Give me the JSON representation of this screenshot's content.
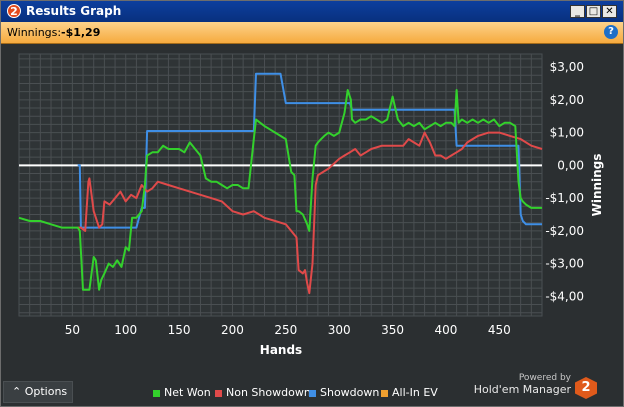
{
  "window": {
    "title": "Results Graph",
    "app_icon_label": "2",
    "buttons": {
      "minimize": "_",
      "maximize": "□",
      "close": "✕"
    }
  },
  "winnings": {
    "label": "Winnings:",
    "value": "-$1,29",
    "help_label": "?"
  },
  "footer": {
    "options_label": "Options",
    "powered_line1": "Powered by",
    "powered_line2": "Hold'em Manager",
    "logo_label": "2"
  },
  "colors": {
    "net_won": "#33d12c",
    "non_showdown": "#e04a4a",
    "showdown": "#3f8fe6",
    "all_in_ev": "#f0a030",
    "background": "#2b2f31",
    "grid": "#4a4f52"
  },
  "chart_data": {
    "type": "line",
    "xlabel": "Hands",
    "ylabel": "Winnings",
    "xlim": [
      0,
      490
    ],
    "ylim": [
      -4.6,
      3.4
    ],
    "x_ticks": [
      50,
      100,
      150,
      200,
      250,
      300,
      350,
      400,
      450
    ],
    "y_ticks": [
      {
        "value": 3,
        "label": "$3,00"
      },
      {
        "value": 2,
        "label": "$2,00"
      },
      {
        "value": 1,
        "label": "$1,00"
      },
      {
        "value": 0,
        "label": "0,00"
      },
      {
        "value": -1,
        "label": "-$1,00"
      },
      {
        "value": -2,
        "label": "-$2,00"
      },
      {
        "value": -3,
        "label": "-$3,00"
      },
      {
        "value": -4,
        "label": "-$4,00"
      }
    ],
    "grid": true,
    "legend_position": "bottom",
    "series": [
      {
        "name": "Net Won",
        "x": [
          0,
          10,
          20,
          30,
          40,
          50,
          55,
          57,
          60,
          62,
          66,
          70,
          72,
          75,
          77,
          80,
          84,
          88,
          92,
          96,
          100,
          103,
          106,
          110,
          115,
          118,
          120,
          125,
          130,
          135,
          140,
          145,
          150,
          155,
          160,
          165,
          170,
          175,
          180,
          185,
          190,
          195,
          200,
          205,
          210,
          215,
          220,
          222,
          226,
          230,
          235,
          240,
          245,
          250,
          255,
          258,
          260,
          262,
          266,
          270,
          272,
          275,
          278,
          280,
          283,
          286,
          290,
          295,
          300,
          305,
          308,
          311,
          312,
          315,
          320,
          325,
          330,
          335,
          340,
          345,
          350,
          355,
          360,
          365,
          370,
          375,
          380,
          385,
          390,
          395,
          400,
          405,
          408,
          410,
          412,
          415,
          420,
          425,
          430,
          435,
          440,
          445,
          450,
          455,
          460,
          465,
          468,
          470,
          472,
          475,
          480,
          485,
          490
        ],
        "y": [
          -1.6,
          -1.7,
          -1.7,
          -1.8,
          -1.9,
          -1.9,
          -1.9,
          -2.0,
          -3.8,
          -3.8,
          -3.8,
          -2.8,
          -2.9,
          -3.8,
          -3.5,
          -3.3,
          -3.0,
          -3.1,
          -2.9,
          -3.1,
          -2.5,
          -2.6,
          -1.6,
          -1.6,
          -1.4,
          -0.6,
          0.3,
          0.4,
          0.4,
          0.6,
          0.5,
          0.5,
          0.5,
          0.4,
          0.7,
          0.5,
          0.3,
          -0.4,
          -0.5,
          -0.5,
          -0.6,
          -0.7,
          -0.6,
          -0.6,
          -0.7,
          -0.7,
          0.8,
          1.4,
          1.3,
          1.2,
          1.1,
          1.0,
          0.9,
          0.8,
          -0.2,
          -0.3,
          -1.4,
          -1.4,
          -1.5,
          -1.8,
          -2.0,
          -0.4,
          0.6,
          0.7,
          0.8,
          0.9,
          1.0,
          0.9,
          1.0,
          1.6,
          2.3,
          2.0,
          1.4,
          1.3,
          1.4,
          1.4,
          1.5,
          1.4,
          1.3,
          1.4,
          2.1,
          1.4,
          1.2,
          1.3,
          1.2,
          1.3,
          1.1,
          1.2,
          1.3,
          1.2,
          1.3,
          1.3,
          1.2,
          2.3,
          1.3,
          1.4,
          1.3,
          1.4,
          1.3,
          1.4,
          1.3,
          1.4,
          1.2,
          1.3,
          1.3,
          1.2,
          -0.5,
          -1.0,
          -1.1,
          -1.2,
          -1.3,
          -1.3,
          -1.3
        ]
      },
      {
        "name": "Non Showdown",
        "x": [
          55,
          58,
          62,
          65,
          66,
          70,
          75,
          78,
          80,
          85,
          90,
          95,
          100,
          105,
          110,
          115,
          120,
          125,
          130,
          140,
          150,
          160,
          170,
          180,
          190,
          200,
          210,
          220,
          225,
          230,
          240,
          250,
          255,
          260,
          262,
          266,
          268,
          270,
          272,
          275,
          278,
          280,
          285,
          290,
          300,
          305,
          310,
          315,
          320,
          325,
          330,
          340,
          350,
          360,
          365,
          370,
          375,
          380,
          385,
          390,
          395,
          400,
          405,
          410,
          415,
          420,
          425,
          430,
          440,
          450,
          460,
          470,
          480,
          490
        ],
        "y": [
          -1.9,
          -1.9,
          -2.0,
          -0.5,
          -0.4,
          -1.4,
          -1.9,
          -1.8,
          -1.1,
          -1.2,
          -1.0,
          -0.8,
          -1.1,
          -0.9,
          -1.0,
          -0.6,
          -0.8,
          -0.7,
          -0.5,
          -0.6,
          -0.7,
          -0.8,
          -0.9,
          -1.0,
          -1.1,
          -1.4,
          -1.5,
          -1.4,
          -1.5,
          -1.6,
          -1.7,
          -1.8,
          -2.0,
          -2.2,
          -3.2,
          -3.3,
          -3.2,
          -3.6,
          -3.9,
          -3.0,
          -0.6,
          -0.3,
          -0.2,
          -0.1,
          0.2,
          0.3,
          0.4,
          0.5,
          0.3,
          0.4,
          0.5,
          0.6,
          0.6,
          0.6,
          0.8,
          0.7,
          0.6,
          1.0,
          0.7,
          0.3,
          0.3,
          0.2,
          0.3,
          0.4,
          0.5,
          0.7,
          0.8,
          0.9,
          1.0,
          1.0,
          0.9,
          0.8,
          0.6,
          0.5
        ]
      },
      {
        "name": "Showdown",
        "x": [
          55,
          57,
          58,
          65,
          70,
          100,
          105,
          110,
          115,
          118,
          120,
          130,
          150,
          170,
          190,
          200,
          210,
          220,
          222,
          225,
          240,
          245,
          250,
          260,
          270,
          280,
          290,
          300,
          305,
          310,
          312,
          320,
          330,
          340,
          350,
          360,
          370,
          380,
          390,
          400,
          408,
          410,
          412,
          420,
          430,
          440,
          450,
          460,
          468,
          470,
          472,
          475,
          480,
          490
        ],
        "y": [
          0.0,
          0.0,
          -1.9,
          -1.9,
          -1.9,
          -1.9,
          -1.9,
          -1.9,
          -1.3,
          -1.3,
          1.05,
          1.05,
          1.05,
          1.05,
          1.05,
          1.05,
          1.05,
          1.05,
          2.8,
          2.8,
          2.8,
          2.8,
          1.9,
          1.9,
          1.9,
          1.9,
          1.9,
          1.9,
          1.9,
          1.9,
          1.7,
          1.7,
          1.7,
          1.7,
          1.7,
          1.7,
          1.7,
          1.7,
          1.7,
          1.7,
          1.7,
          0.6,
          0.6,
          0.6,
          0.6,
          0.6,
          0.6,
          0.6,
          0.6,
          -1.5,
          -1.7,
          -1.8,
          -1.8,
          -1.8
        ]
      },
      {
        "name": "All-In EV",
        "x": [],
        "y": []
      }
    ]
  }
}
